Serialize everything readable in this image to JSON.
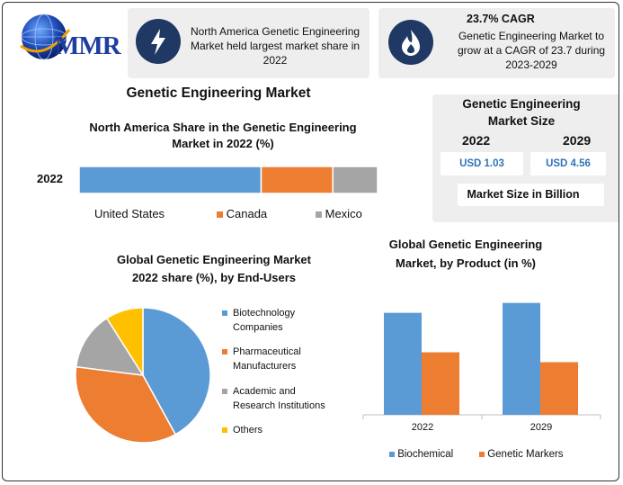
{
  "logo": {
    "text": "MMR"
  },
  "cards": {
    "north_america": {
      "text": "North America Genetic Engineering Market held largest market share in 2022",
      "icon": "lightning-bolt-icon"
    },
    "cagr": {
      "title": "23.7% CAGR",
      "text": "Genetic Engineering Market to grow at a CAGR of 23.7 during 2023-2029",
      "icon": "flame-icon"
    }
  },
  "main_title": "Genetic Engineering Market",
  "market_size": {
    "title_line1": "Genetic Engineering",
    "title_line2": "Market Size",
    "year1": "2022",
    "year2": "2029",
    "value1": "USD 1.03",
    "value2": "USD 4.56",
    "unit": "Market Size in Billion"
  },
  "colors": {
    "blue": "#5b9bd5",
    "orange": "#ed7d31",
    "gray": "#a5a5a5",
    "yellow": "#ffc000",
    "navy": "#1f3864",
    "card": "#eeeeee"
  },
  "chart_data": [
    {
      "type": "bar",
      "orientation": "horizontal-stacked",
      "title_line1": "North America Share in the Genetic Engineering",
      "title_line2": "Market in 2022 (%)",
      "categories": [
        "2022"
      ],
      "series": [
        {
          "name": "United States",
          "values": [
            61
          ],
          "color": "#5b9bd5"
        },
        {
          "name": "Canada",
          "values": [
            24
          ],
          "color": "#ed7d31"
        },
        {
          "name": "Mexico",
          "values": [
            15
          ],
          "color": "#a5a5a5"
        }
      ],
      "legend": "bottom",
      "grid": false
    },
    {
      "type": "pie",
      "title_line1": "Global Genetic Engineering Market",
      "title_line2": "2022 share (%), by End-Users",
      "slices": [
        {
          "name_line1": "Biotechnology",
          "name_line2": "Companies",
          "value": 42,
          "color": "#5b9bd5"
        },
        {
          "name_line1": "Pharmaceutical",
          "name_line2": "Manufacturers",
          "value": 35,
          "color": "#ed7d31"
        },
        {
          "name_line1": "Academic and",
          "name_line2": "Research Institutions",
          "value": 14,
          "color": "#a5a5a5"
        },
        {
          "name_line1": "Others",
          "name_line2": "",
          "value": 9,
          "color": "#ffc000"
        }
      ],
      "legend": "right"
    },
    {
      "type": "bar",
      "title_line1": "Global Genetic Engineering",
      "title_line2": "Market, by Product (in %)",
      "categories": [
        "2022",
        "2029"
      ],
      "series": [
        {
          "name": "Biochemical",
          "values": [
            62,
            68
          ],
          "color": "#5b9bd5"
        },
        {
          "name": "Genetic Markers",
          "values": [
            38,
            32
          ],
          "color": "#ed7d31"
        }
      ],
      "ylim": [
        0,
        70
      ],
      "legend": "bottom",
      "grid": false
    }
  ]
}
